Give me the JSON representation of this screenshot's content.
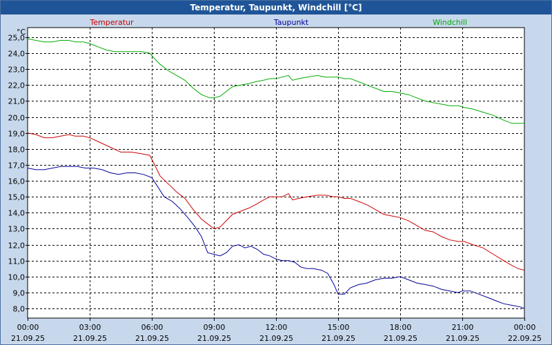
{
  "window": {
    "title": "Temperatur, Taupunkt, Windchill [°C]"
  },
  "chart_data": {
    "type": "line",
    "unit_label": "°C",
    "ylim": [
      7.4,
      25.6
    ],
    "y_ticks": [
      "8,0",
      "9,0",
      "10,0",
      "11,0",
      "12,0",
      "13,0",
      "14,0",
      "15,0",
      "16,0",
      "17,0",
      "18,0",
      "19,0",
      "20,0",
      "21,0",
      "22,0",
      "23,0",
      "24,0",
      "25,0"
    ],
    "y_tick_values": [
      8,
      9,
      10,
      11,
      12,
      13,
      14,
      15,
      16,
      17,
      18,
      19,
      20,
      21,
      22,
      23,
      24,
      25
    ],
    "xlim": [
      0,
      24
    ],
    "x_ticks": [
      {
        "time": "00:00",
        "date": "21.09.25",
        "h": 0
      },
      {
        "time": "03:00",
        "date": "21.09.25",
        "h": 3
      },
      {
        "time": "06:00",
        "date": "21.09.25",
        "h": 6
      },
      {
        "time": "09:00",
        "date": "21.09.25",
        "h": 9
      },
      {
        "time": "12:00",
        "date": "21.09.25",
        "h": 12
      },
      {
        "time": "15:00",
        "date": "21.09.25",
        "h": 15
      },
      {
        "time": "18:00",
        "date": "21.09.25",
        "h": 18
      },
      {
        "time": "21:00",
        "date": "21.09.25",
        "h": 21
      },
      {
        "time": "00:00",
        "date": "22.09.25",
        "h": 24
      }
    ],
    "grid": true,
    "series": [
      {
        "name": "Temperatur",
        "color": "#cc0000",
        "legend_pos": "left",
        "points": [
          [
            0,
            19.0
          ],
          [
            0.4,
            18.9
          ],
          [
            0.8,
            18.7
          ],
          [
            1.2,
            18.7
          ],
          [
            1.6,
            18.8
          ],
          [
            2.0,
            18.9
          ],
          [
            2.3,
            18.8
          ],
          [
            2.7,
            18.8
          ],
          [
            3.0,
            18.7
          ],
          [
            3.5,
            18.4
          ],
          [
            4.0,
            18.1
          ],
          [
            4.5,
            17.8
          ],
          [
            5.0,
            17.8
          ],
          [
            5.5,
            17.7
          ],
          [
            5.9,
            17.6
          ],
          [
            6.1,
            17.1
          ],
          [
            6.4,
            16.3
          ],
          [
            6.8,
            15.8
          ],
          [
            7.2,
            15.3
          ],
          [
            7.6,
            14.9
          ],
          [
            8.0,
            14.2
          ],
          [
            8.4,
            13.6
          ],
          [
            8.8,
            13.2
          ],
          [
            9.0,
            13.0
          ],
          [
            9.3,
            13.1
          ],
          [
            9.6,
            13.5
          ],
          [
            9.9,
            13.9
          ],
          [
            10.3,
            14.1
          ],
          [
            10.7,
            14.3
          ],
          [
            11.0,
            14.5
          ],
          [
            11.4,
            14.8
          ],
          [
            11.7,
            15.0
          ],
          [
            12.0,
            15.0
          ],
          [
            12.3,
            15.0
          ],
          [
            12.6,
            15.2
          ],
          [
            12.8,
            14.8
          ],
          [
            13.1,
            14.9
          ],
          [
            13.5,
            15.0
          ],
          [
            14.0,
            15.1
          ],
          [
            14.4,
            15.1
          ],
          [
            14.8,
            15.0
          ],
          [
            15.0,
            15.0
          ],
          [
            15.3,
            14.9
          ],
          [
            15.6,
            14.9
          ],
          [
            16.0,
            14.7
          ],
          [
            16.4,
            14.5
          ],
          [
            16.8,
            14.2
          ],
          [
            17.2,
            13.9
          ],
          [
            17.6,
            13.8
          ],
          [
            18.0,
            13.7
          ],
          [
            18.4,
            13.5
          ],
          [
            18.8,
            13.2
          ],
          [
            19.2,
            12.9
          ],
          [
            19.6,
            12.8
          ],
          [
            20.0,
            12.5
          ],
          [
            20.4,
            12.3
          ],
          [
            20.8,
            12.2
          ],
          [
            21.1,
            12.2
          ],
          [
            21.5,
            12.0
          ],
          [
            22.0,
            11.8
          ],
          [
            22.5,
            11.4
          ],
          [
            23.0,
            11.0
          ],
          [
            23.4,
            10.7
          ],
          [
            23.7,
            10.5
          ],
          [
            24.0,
            10.4
          ]
        ]
      },
      {
        "name": "Taupunkt",
        "color": "#000099",
        "legend_pos": "center",
        "points": [
          [
            0,
            16.8
          ],
          [
            0.4,
            16.7
          ],
          [
            0.8,
            16.7
          ],
          [
            1.2,
            16.8
          ],
          [
            1.6,
            16.9
          ],
          [
            2.0,
            16.9
          ],
          [
            2.4,
            16.9
          ],
          [
            2.8,
            16.8
          ],
          [
            3.2,
            16.8
          ],
          [
            3.6,
            16.7
          ],
          [
            4.0,
            16.5
          ],
          [
            4.4,
            16.4
          ],
          [
            4.8,
            16.5
          ],
          [
            5.2,
            16.5
          ],
          [
            5.6,
            16.4
          ],
          [
            6.0,
            16.2
          ],
          [
            6.3,
            15.6
          ],
          [
            6.6,
            15.0
          ],
          [
            7.0,
            14.7
          ],
          [
            7.4,
            14.2
          ],
          [
            7.8,
            13.6
          ],
          [
            8.1,
            13.1
          ],
          [
            8.4,
            12.5
          ],
          [
            8.7,
            11.5
          ],
          [
            9.0,
            11.4
          ],
          [
            9.3,
            11.3
          ],
          [
            9.6,
            11.5
          ],
          [
            9.9,
            11.9
          ],
          [
            10.2,
            12.0
          ],
          [
            10.5,
            11.8
          ],
          [
            10.8,
            11.9
          ],
          [
            11.1,
            11.7
          ],
          [
            11.4,
            11.4
          ],
          [
            11.7,
            11.3
          ],
          [
            12.0,
            11.1
          ],
          [
            12.3,
            11.0
          ],
          [
            12.6,
            11.0
          ],
          [
            12.9,
            10.9
          ],
          [
            13.2,
            10.6
          ],
          [
            13.5,
            10.5
          ],
          [
            13.8,
            10.5
          ],
          [
            14.2,
            10.4
          ],
          [
            14.5,
            10.2
          ],
          [
            14.8,
            9.5
          ],
          [
            15.0,
            8.9
          ],
          [
            15.3,
            8.9
          ],
          [
            15.6,
            9.3
          ],
          [
            16.0,
            9.5
          ],
          [
            16.4,
            9.6
          ],
          [
            16.8,
            9.8
          ],
          [
            17.2,
            9.9
          ],
          [
            17.6,
            9.9
          ],
          [
            18.0,
            10.0
          ],
          [
            18.4,
            9.8
          ],
          [
            18.8,
            9.6
          ],
          [
            19.2,
            9.5
          ],
          [
            19.6,
            9.4
          ],
          [
            20.0,
            9.2
          ],
          [
            20.4,
            9.1
          ],
          [
            20.8,
            9.0
          ],
          [
            21.0,
            9.1
          ],
          [
            21.4,
            9.1
          ],
          [
            21.8,
            8.9
          ],
          [
            22.2,
            8.7
          ],
          [
            22.6,
            8.5
          ],
          [
            23.0,
            8.3
          ],
          [
            23.4,
            8.2
          ],
          [
            23.8,
            8.1
          ],
          [
            24.0,
            8.0
          ]
        ]
      },
      {
        "name": "Windchill",
        "color": "#00aa00",
        "legend_pos": "right",
        "points": [
          [
            0,
            24.9
          ],
          [
            0.4,
            24.8
          ],
          [
            0.8,
            24.7
          ],
          [
            1.2,
            24.7
          ],
          [
            1.6,
            24.8
          ],
          [
            2.0,
            24.8
          ],
          [
            2.3,
            24.7
          ],
          [
            2.7,
            24.7
          ],
          [
            3.0,
            24.6
          ],
          [
            3.4,
            24.4
          ],
          [
            3.8,
            24.2
          ],
          [
            4.2,
            24.1
          ],
          [
            4.6,
            24.1
          ],
          [
            5.0,
            24.1
          ],
          [
            5.5,
            24.1
          ],
          [
            5.9,
            24.0
          ],
          [
            6.1,
            23.7
          ],
          [
            6.4,
            23.3
          ],
          [
            6.8,
            22.9
          ],
          [
            7.2,
            22.6
          ],
          [
            7.6,
            22.3
          ],
          [
            8.0,
            21.8
          ],
          [
            8.4,
            21.4
          ],
          [
            8.8,
            21.2
          ],
          [
            9.0,
            21.2
          ],
          [
            9.3,
            21.3
          ],
          [
            9.6,
            21.6
          ],
          [
            9.9,
            21.9
          ],
          [
            10.3,
            22.0
          ],
          [
            10.7,
            22.1
          ],
          [
            11.0,
            22.2
          ],
          [
            11.4,
            22.3
          ],
          [
            11.7,
            22.4
          ],
          [
            12.0,
            22.4
          ],
          [
            12.3,
            22.5
          ],
          [
            12.6,
            22.6
          ],
          [
            12.8,
            22.3
          ],
          [
            13.1,
            22.4
          ],
          [
            13.5,
            22.5
          ],
          [
            14.0,
            22.6
          ],
          [
            14.4,
            22.5
          ],
          [
            14.8,
            22.5
          ],
          [
            15.0,
            22.5
          ],
          [
            15.3,
            22.4
          ],
          [
            15.6,
            22.4
          ],
          [
            16.0,
            22.2
          ],
          [
            16.4,
            22.0
          ],
          [
            16.8,
            21.8
          ],
          [
            17.2,
            21.6
          ],
          [
            17.6,
            21.6
          ],
          [
            18.0,
            21.5
          ],
          [
            18.4,
            21.4
          ],
          [
            18.8,
            21.2
          ],
          [
            19.2,
            21.0
          ],
          [
            19.6,
            20.9
          ],
          [
            20.0,
            20.8
          ],
          [
            20.4,
            20.7
          ],
          [
            20.8,
            20.7
          ],
          [
            21.1,
            20.6
          ],
          [
            21.5,
            20.5
          ],
          [
            22.0,
            20.3
          ],
          [
            22.5,
            20.1
          ],
          [
            23.0,
            19.8
          ],
          [
            23.4,
            19.6
          ],
          [
            23.7,
            19.6
          ],
          [
            24.0,
            19.6
          ]
        ]
      }
    ]
  }
}
